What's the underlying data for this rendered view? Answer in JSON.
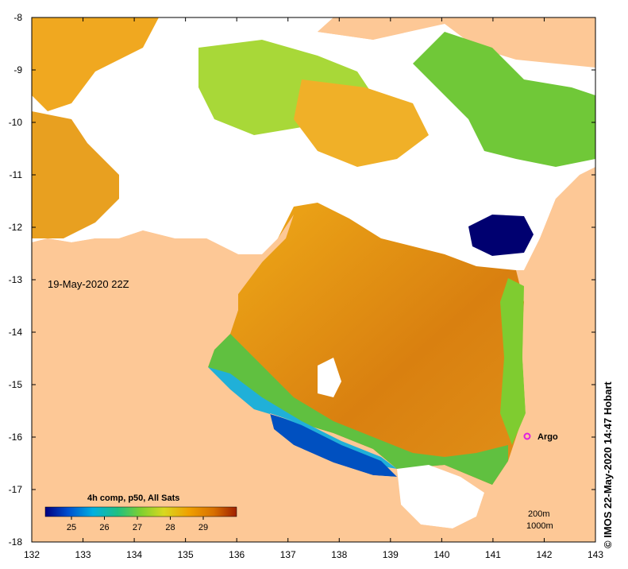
{
  "map": {
    "timestamp": "19-May-2020 22Z",
    "credit": "© IMOS 22-May-2020 14:47 Hobart",
    "x_axis": {
      "ticks": [
        "132",
        "133",
        "134",
        "135",
        "136",
        "137",
        "138",
        "139",
        "140",
        "141",
        "142",
        "143"
      ]
    },
    "y_axis": {
      "ticks": [
        "-8",
        "-9",
        "-10",
        "-11",
        "-12",
        "-13",
        "-14",
        "-15",
        "-16",
        "-17",
        "-18"
      ]
    },
    "legend": {
      "title": "4h comp, p50, All Sats",
      "ticks": [
        "25",
        "26",
        "27",
        "28",
        "29"
      ],
      "colors": [
        "#000080",
        "#0050d0",
        "#00b0e0",
        "#20c080",
        "#7fd030",
        "#d8d820",
        "#f0a000",
        "#d87000",
        "#a02000"
      ]
    },
    "argo": {
      "label": "Argo",
      "color": "#e020e0"
    },
    "scale": {
      "contour_1": "200m",
      "contour_2": "1000m"
    },
    "colors": {
      "land": "#fdc896",
      "no_data": "#ffffff",
      "sst_warm": "#e08810",
      "sst_mid": "#f0b020",
      "sst_green": "#60c040",
      "sst_cyan": "#20b0d8",
      "sst_blue": "#0050c0",
      "sst_cold": "#000070"
    }
  }
}
